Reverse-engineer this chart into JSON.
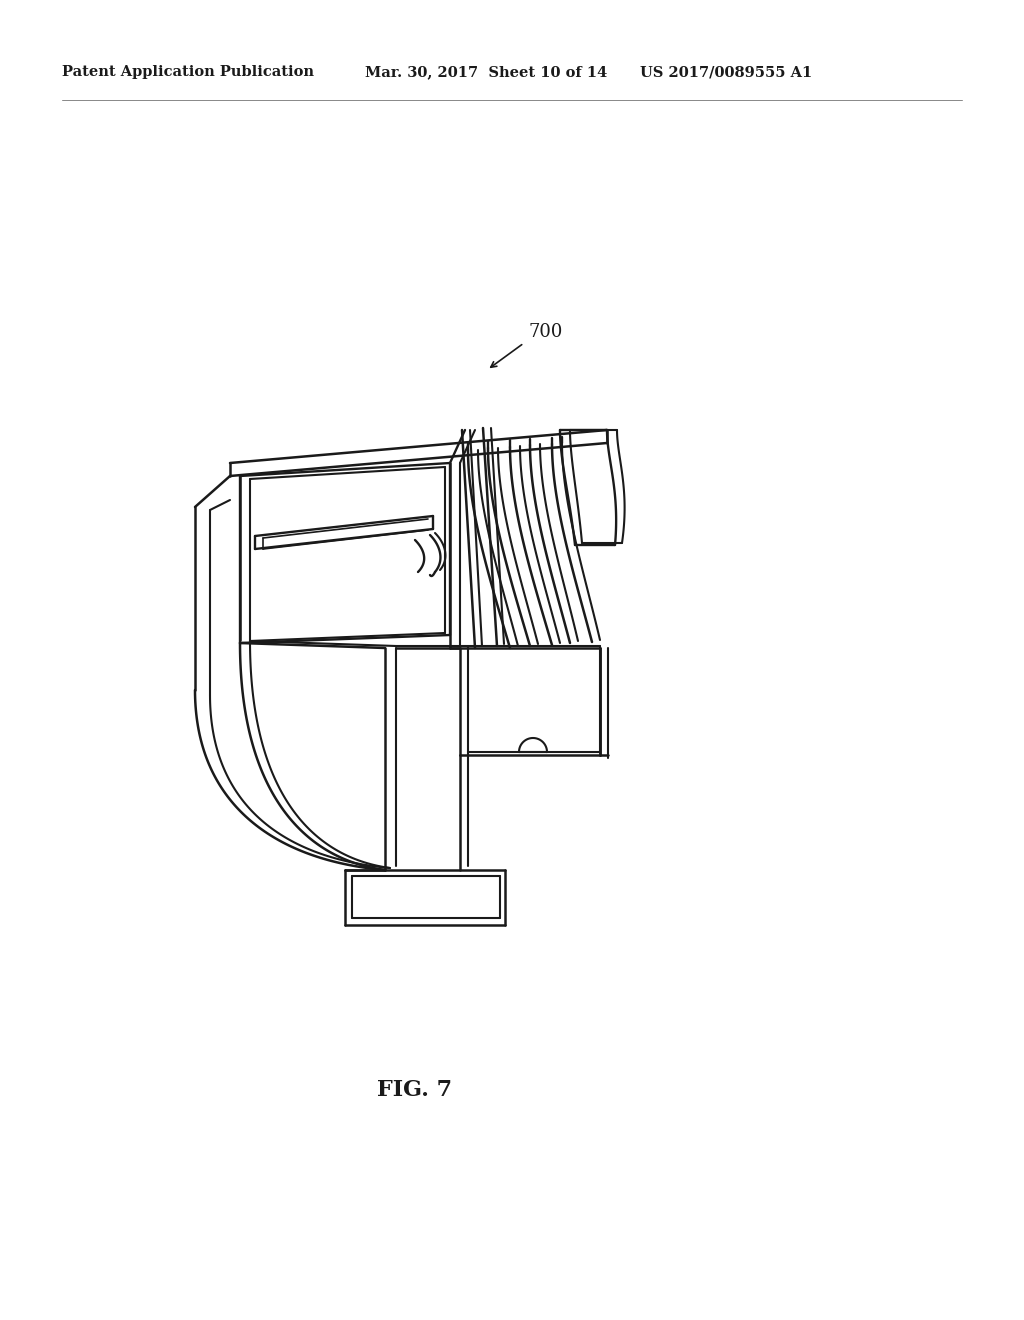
{
  "header_left": "Patent Application Publication",
  "header_mid": "Mar. 30, 2017  Sheet 10 of 14",
  "header_right": "US 2017/0089555 A1",
  "fig_label": "FIG. 7",
  "part_label": "700",
  "bg_color": "#ffffff",
  "line_color": "#1a1a1a",
  "line_width": 1.5,
  "header_fontsize": 10.5,
  "label_fontsize": 16,
  "part_label_fontsize": 13
}
